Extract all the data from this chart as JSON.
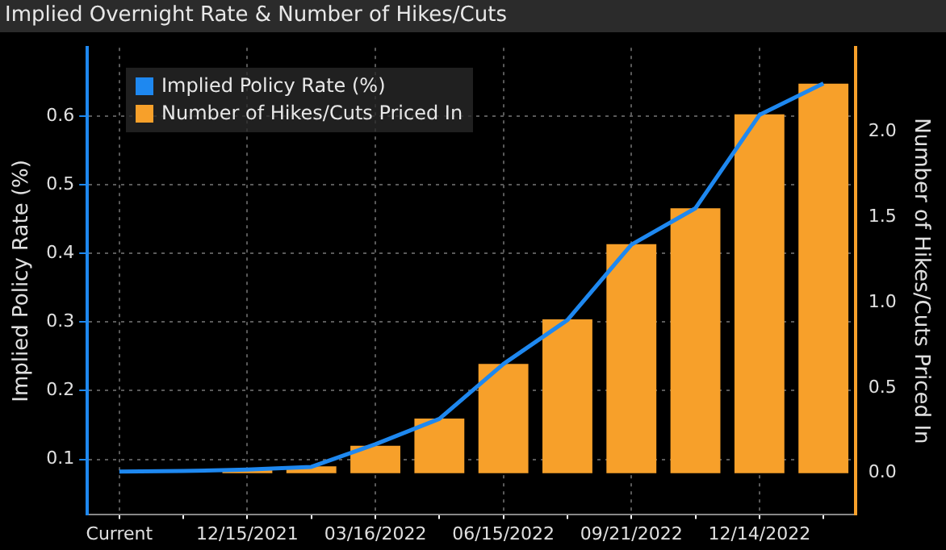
{
  "chart_data": {
    "type": "bar",
    "title": "Implied Overnight Rate & Number of Hikes/Cuts",
    "ylabel": "Implied Policy Rate (%)",
    "y2label": "Number of Hikes/Cuts Priced In",
    "categories": [
      "Current",
      null,
      "12/15/2021",
      null,
      "03/16/2022",
      null,
      "06/15/2022",
      null,
      "09/21/2022",
      null,
      "12/14/2022",
      null
    ],
    "series": [
      {
        "name": "Implied Policy Rate (%)",
        "type": "line",
        "axis": "y",
        "color": "#1e88f0",
        "values": [
          0.082,
          0.083,
          0.085,
          0.089,
          0.122,
          0.159,
          0.239,
          0.303,
          0.413,
          0.466,
          0.602,
          0.648
        ]
      },
      {
        "name": "Number of Hikes/Cuts Priced In",
        "axis": "y2",
        "color": "#f7a02a",
        "values": [
          null,
          null,
          0.02,
          0.04,
          0.16,
          0.32,
          0.64,
          0.9,
          1.34,
          1.55,
          2.1,
          2.28
        ]
      }
    ],
    "ylim": [
      0.02,
      0.7
    ],
    "yticks": [
      0.1,
      0.2,
      0.3,
      0.4,
      0.5,
      0.6
    ],
    "y2lim": [
      -0.24,
      2.49
    ],
    "y2ticks": [
      {
        "value": 0,
        "label": "0.0"
      },
      {
        "value": 0.5,
        "label": "0.5"
      },
      {
        "value": 1,
        "label": "1.0"
      },
      {
        "value": 1.5,
        "label": "1.5"
      },
      {
        "value": 2,
        "label": "2.0"
      }
    ],
    "grid": true,
    "legend": "top left",
    "marker": "none"
  }
}
